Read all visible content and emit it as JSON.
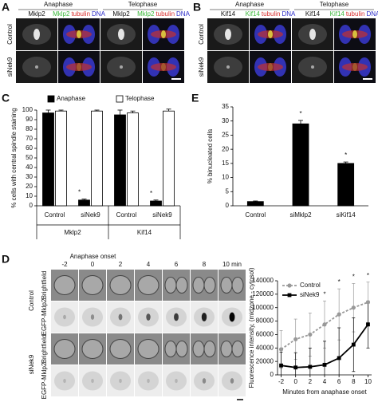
{
  "image_panels": [
    {
      "label": "A",
      "headers": [
        "Anaphase",
        "Telophase"
      ],
      "subheaders": [
        "Mklp2",
        [
          "Mklp2",
          "tubulin",
          "DNA"
        ],
        "Mklp2",
        [
          "Mklp2",
          "tubulin",
          "DNA"
        ]
      ],
      "rows": [
        "Control",
        "siNek9"
      ]
    },
    {
      "label": "B",
      "headers": [
        "Anaphase",
        "Telophase"
      ],
      "subheaders": [
        "Kif14",
        [
          "Kif14",
          "tubulin",
          "DNA"
        ],
        "Kif14",
        [
          "Kif14",
          "tubulin",
          "DNA"
        ]
      ],
      "rows": [
        "Control",
        "siNek9"
      ]
    }
  ],
  "channel_colors": [
    "#3cb83c",
    "#d83030",
    "#2c2cc8"
  ],
  "timelapse": {
    "label": "D",
    "onset": "Anaphase onset",
    "times": [
      -2,
      0,
      2,
      4,
      6,
      8,
      {
        "value": 10,
        "label": "10 min"
      }
    ],
    "conditions": [
      "Control",
      "siNek9"
    ],
    "channels": [
      "Brightfield",
      "EGFP-Mklp2"
    ]
  },
  "chart_data": [
    {
      "type": "bar",
      "panel_label": "C",
      "ylabel": "% cells with central spindle staining",
      "categories": [
        "Control",
        "siNek9",
        "Control",
        "siNek9"
      ],
      "groups": [
        "Mklp2",
        "Kif14"
      ],
      "series": [
        {
          "name": "Anaphase",
          "color": "#000000",
          "values": [
            97,
            6,
            95,
            5
          ],
          "errors": [
            3,
            1,
            5,
            1
          ]
        },
        {
          "name": "Telophase",
          "color": "#ffffff",
          "values": [
            99,
            99,
            97,
            99
          ],
          "errors": [
            1,
            1,
            2,
            2
          ]
        }
      ],
      "significance": [
        null,
        "*",
        null,
        "*"
      ],
      "ylim": [
        0,
        100
      ],
      "yticks": [
        0,
        10,
        20,
        30,
        40,
        50,
        60,
        70,
        80,
        90,
        100
      ],
      "legend": "top"
    },
    {
      "type": "bar",
      "panel_label": "E",
      "ylabel": "% binucleated cells",
      "categories": [
        "Control",
        "siMklp2",
        "siKif14"
      ],
      "series": [
        {
          "name": "binucleated",
          "color": "#000000",
          "values": [
            1.5,
            29,
            15
          ],
          "errors": [
            0.2,
            1.2,
            0.5
          ]
        }
      ],
      "significance": [
        null,
        "*",
        "*"
      ],
      "ylim": [
        0,
        35
      ],
      "yticks": [
        0,
        5,
        10,
        15,
        20,
        25,
        30,
        35
      ]
    },
    {
      "type": "line",
      "xlabel": "Minutes from anaphase onset",
      "ylabel": "Fluorescence intensity, (midzone - cytosol)",
      "x": [
        -2,
        0,
        2,
        4,
        6,
        8,
        10
      ],
      "series": [
        {
          "name": "Control",
          "color": "#999999",
          "dashed": true,
          "marker": "circle",
          "values": [
            38000,
            53000,
            60000,
            75000,
            90000,
            100000,
            108000
          ],
          "errors": [
            28000,
            30000,
            32000,
            35000,
            38000,
            36000,
            30000
          ]
        },
        {
          "name": "siNek9",
          "color": "#000000",
          "dashed": false,
          "marker": "square",
          "values": [
            14000,
            11000,
            12000,
            15000,
            25000,
            45000,
            75000
          ],
          "errors": [
            20000,
            22000,
            28000,
            35000,
            45000,
            40000,
            35000
          ]
        }
      ],
      "significance": [
        null,
        null,
        null,
        "*",
        "*",
        "*",
        "*"
      ],
      "xlim": [
        -2.5,
        10.5
      ],
      "xticks": [
        -2,
        0,
        2,
        4,
        6,
        8,
        10
      ],
      "ylim": [
        0,
        140000
      ],
      "yticks": [
        0,
        20000,
        40000,
        60000,
        80000,
        100000,
        120000,
        140000
      ],
      "legend": "top-left"
    }
  ]
}
